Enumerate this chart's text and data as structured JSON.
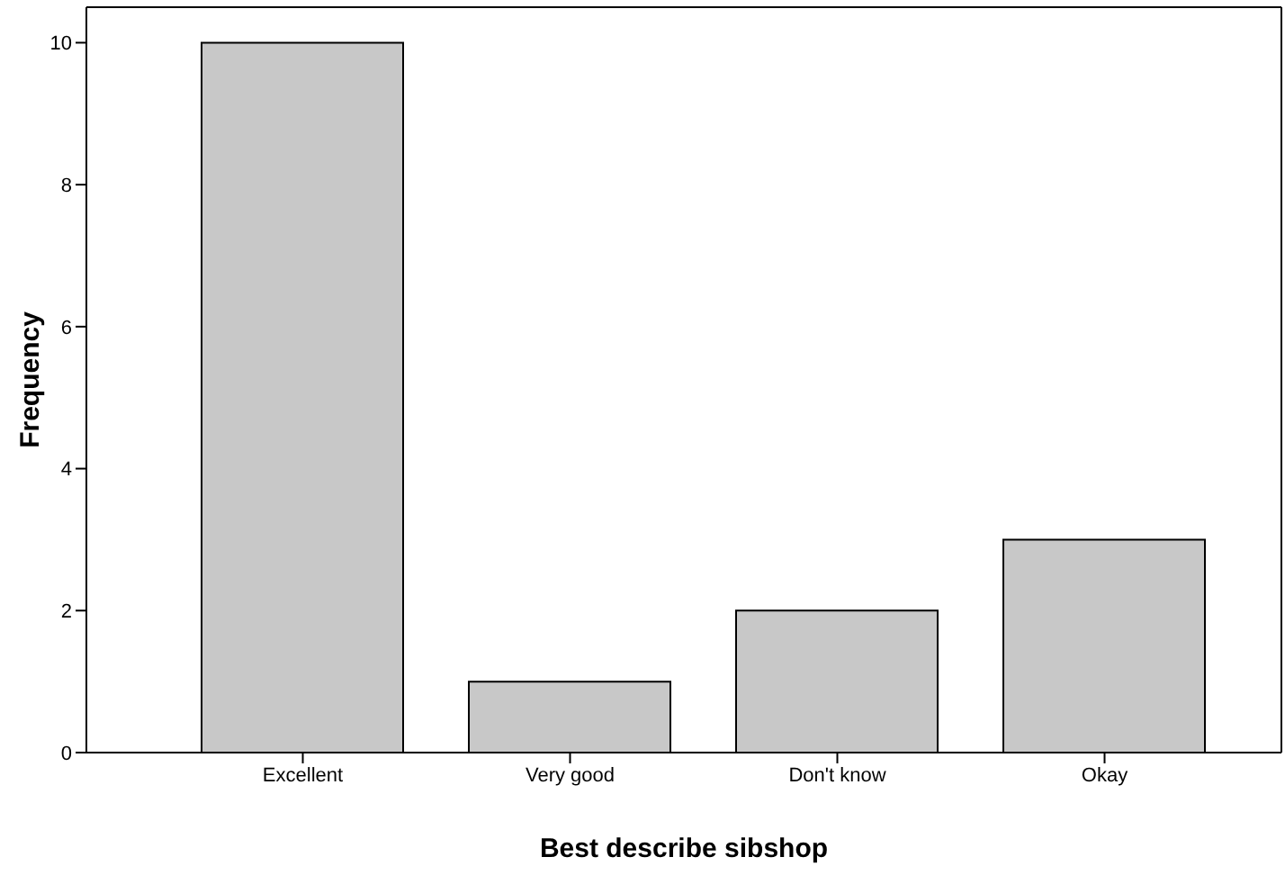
{
  "chart_data": {
    "type": "bar",
    "xlabel": "Best describe sibshop",
    "ylabel": "Frequency",
    "categories": [
      "Excellent",
      "Very good",
      "Don't know",
      "Okay"
    ],
    "values": [
      10,
      1,
      2,
      3
    ],
    "color": "#c8c8c8",
    "ylim": [
      0,
      10.5
    ],
    "yticks": [
      0,
      2,
      4,
      6,
      8,
      10
    ],
    "grid": false,
    "legend": false
  }
}
